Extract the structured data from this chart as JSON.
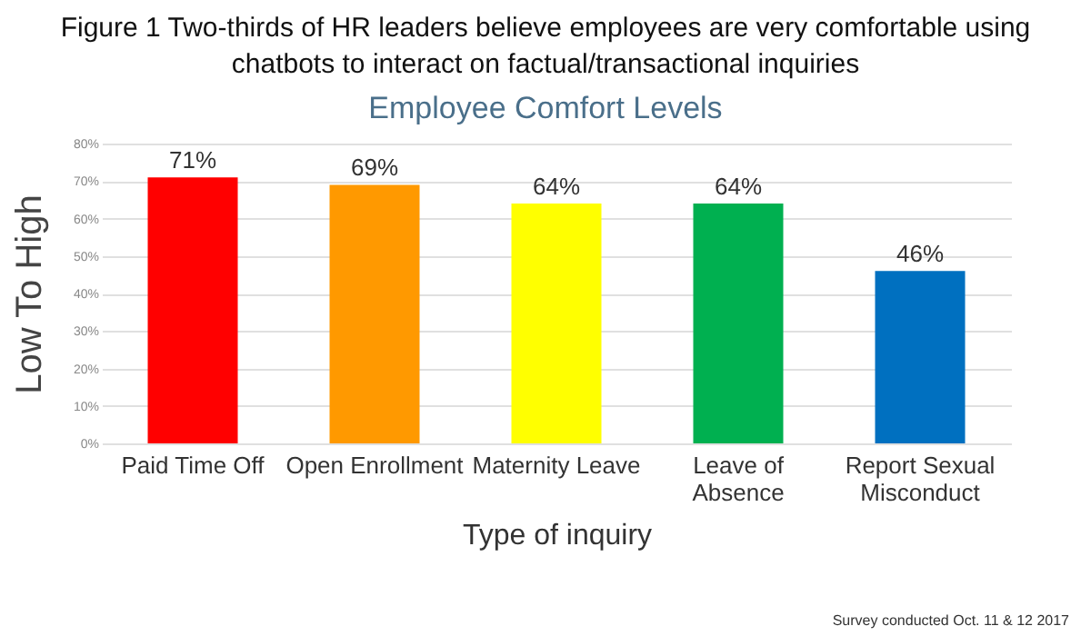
{
  "chart_data": {
    "type": "bar",
    "title": "Figure 1 Two-thirds of HR leaders believe employees are very comfortable using chatbots to interact on factual/transactional inquiries",
    "subtitle": "Employee Comfort Levels",
    "xlabel": "Type of inquiry",
    "ylabel": "Low To High",
    "categories": [
      "Paid Time Off",
      "Open Enrollment",
      "Maternity Leave",
      "Leave of Absence",
      "Report Sexual Misconduct"
    ],
    "values": [
      71,
      69,
      64,
      64,
      46
    ],
    "colors": [
      "#ff0000",
      "#ff9900",
      "#ffff00",
      "#00b050",
      "#0070c0"
    ],
    "value_labels": [
      "71%",
      "69%",
      "64%",
      "64%",
      "46%"
    ],
    "ylim": [
      0,
      80
    ],
    "yticks": [
      {
        "value": 0,
        "label": "0%"
      },
      {
        "value": 10,
        "label": "10%"
      },
      {
        "value": 20,
        "label": "20%"
      },
      {
        "value": 30,
        "label": "30%"
      },
      {
        "value": 40,
        "label": "40%"
      },
      {
        "value": 50,
        "label": "50%"
      },
      {
        "value": 60,
        "label": "60%"
      },
      {
        "value": 70,
        "label": "70%"
      },
      {
        "value": 80,
        "label": "80%"
      }
    ],
    "grid": true,
    "annotations": [
      "Survey conducted Oct. 11 & 12 2017"
    ]
  }
}
